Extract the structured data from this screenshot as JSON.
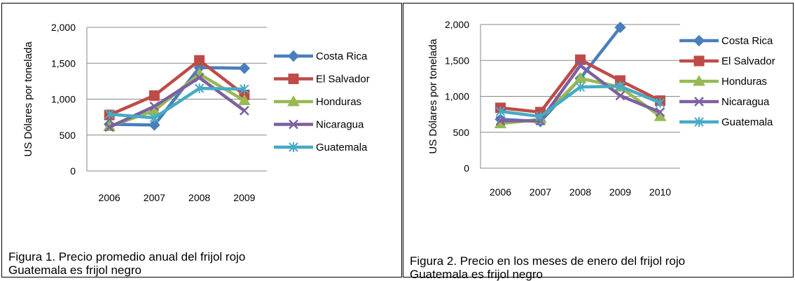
{
  "chart_data": [
    {
      "type": "line",
      "title": "",
      "xlabel": "",
      "ylabel": "US Dólares por tonelada",
      "categories": [
        "2006",
        "2007",
        "2008",
        "2009"
      ],
      "ylim": [
        0,
        2000
      ],
      "yticks": [
        "0",
        "500",
        "1,000",
        "1,500",
        "2,000"
      ],
      "ytick_values": [
        0,
        500,
        1000,
        1500,
        2000
      ],
      "grid": true,
      "legend_position": "right",
      "series": [
        {
          "name": "Costa Rica",
          "color": "#4a7ebb",
          "marker": "diamond",
          "values": [
            650,
            640,
            1440,
            1430
          ]
        },
        {
          "name": "El Salvador",
          "color": "#be4b48",
          "marker": "square",
          "values": [
            780,
            1050,
            1540,
            1060
          ]
        },
        {
          "name": "Honduras",
          "color": "#98b954",
          "marker": "triangle",
          "values": [
            620,
            840,
            1350,
            980
          ]
        },
        {
          "name": "Nicaragua",
          "color": "#7d60a0",
          "marker": "x",
          "values": [
            610,
            900,
            1300,
            840
          ]
        },
        {
          "name": "Guatemala",
          "color": "#46aac5",
          "marker": "star",
          "values": [
            790,
            740,
            1150,
            1140
          ]
        }
      ],
      "caption": [
        "Figura 1. Precio promedio anual del frijol rojo",
        "Guatemala es frijol negro"
      ]
    },
    {
      "type": "line",
      "title": "",
      "xlabel": "",
      "ylabel": "US Dólares por tonelada",
      "categories": [
        "2006",
        "2007",
        "2008",
        "2009",
        "2010"
      ],
      "ylim": [
        0,
        2000
      ],
      "yticks": [
        "0",
        "500",
        "1,000",
        "1,500",
        "2,000"
      ],
      "ytick_values": [
        0,
        500,
        1000,
        1500,
        2000
      ],
      "grid": true,
      "legend_position": "right",
      "series": [
        {
          "name": "Costa Rica",
          "color": "#4a7ebb",
          "marker": "diamond",
          "values": [
            680,
            650,
            1250,
            1960,
            null
          ]
        },
        {
          "name": "El Salvador",
          "color": "#be4b48",
          "marker": "square",
          "values": [
            840,
            780,
            1510,
            1220,
            940
          ]
        },
        {
          "name": "Honduras",
          "color": "#98b954",
          "marker": "triangle",
          "values": [
            620,
            680,
            1250,
            1130,
            720
          ]
        },
        {
          "name": "Nicaragua",
          "color": "#7d60a0",
          "marker": "x",
          "values": [
            660,
            660,
            1430,
            1010,
            780
          ]
        },
        {
          "name": "Guatemala",
          "color": "#46aac5",
          "marker": "star",
          "values": [
            790,
            720,
            1130,
            1140,
            910
          ]
        }
      ],
      "caption": [
        "Figura 2. Precio en los meses de enero del frijol rojo",
        "Guatemala es frijol negro"
      ]
    }
  ]
}
